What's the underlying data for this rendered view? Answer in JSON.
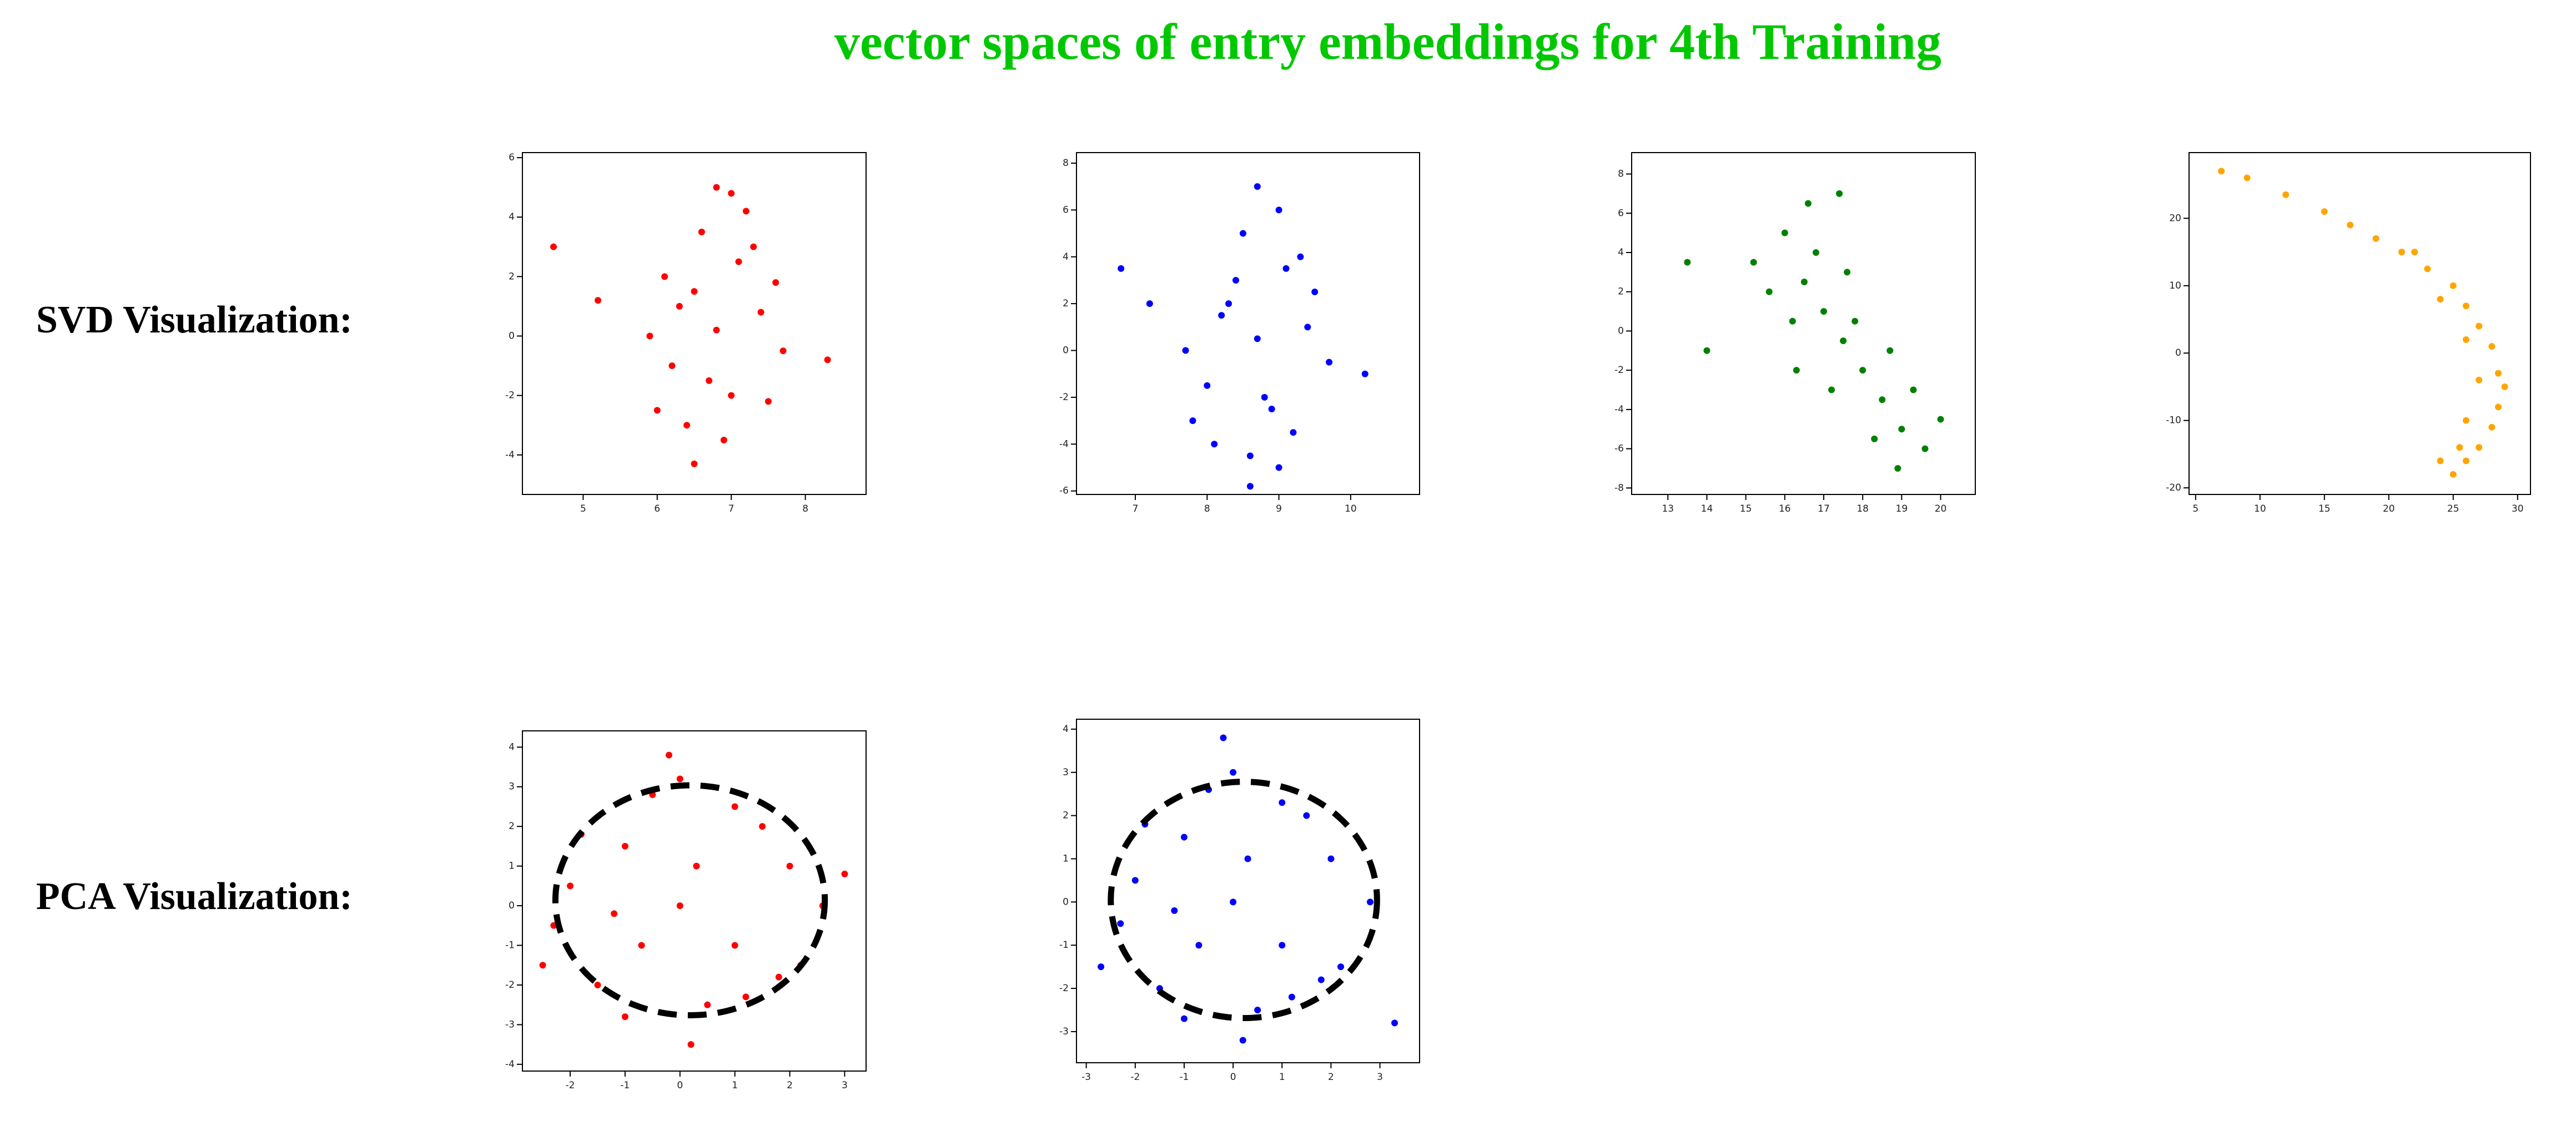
{
  "header": {
    "title": "vector spaces of entry embeddings for 4th Training"
  },
  "rows": [
    {
      "label": "SVD Visualization:"
    },
    {
      "label": "PCA Visualization:"
    }
  ],
  "chart_data": [
    {
      "type": "scatter",
      "xlim": [
        4.18,
        8.82
      ],
      "ylim": [
        -5.33,
        6.17
      ],
      "xticks": [
        5,
        6,
        7,
        8
      ],
      "yticks": [
        -4,
        -2,
        0,
        2,
        4,
        6
      ],
      "series": [
        {
          "color": "#ff0000",
          "x": [
            6.8,
            6.5,
            7.1,
            6.2,
            7.4,
            6.0,
            7.7,
            6.6,
            7.0,
            6.3,
            7.3,
            6.9,
            6.4,
            7.2,
            5.9,
            7.6,
            6.7,
            6.1,
            7.5,
            6.8,
            5.2,
            8.3,
            6.5,
            7.0,
            4.6
          ],
          "y": [
            0.2,
            1.5,
            2.5,
            -1.0,
            0.8,
            -2.5,
            -0.5,
            3.5,
            -2.0,
            1.0,
            3.0,
            -3.5,
            -3.0,
            4.2,
            0.0,
            1.8,
            -1.5,
            2.0,
            -2.2,
            5.0,
            1.2,
            -0.8,
            -4.3,
            4.8,
            3.0
          ]
        }
      ]
    },
    {
      "type": "scatter",
      "xlim": [
        6.18,
        10.96
      ],
      "ylim": [
        -6.15,
        8.45
      ],
      "xticks": [
        7,
        8,
        9,
        10
      ],
      "yticks": [
        -6,
        -4,
        -2,
        0,
        2,
        4,
        6,
        8
      ],
      "series": [
        {
          "color": "#0000ff",
          "x": [
            8.7,
            8.3,
            9.1,
            8.0,
            9.4,
            7.8,
            9.7,
            8.5,
            8.9,
            8.2,
            9.3,
            8.6,
            8.1,
            9.0,
            7.7,
            9.5,
            8.8,
            8.4,
            9.2,
            8.7,
            7.2,
            10.2,
            8.6,
            9.0,
            6.8
          ],
          "y": [
            0.5,
            2.0,
            3.5,
            -1.5,
            1.0,
            -3.0,
            -0.5,
            5.0,
            -2.5,
            1.5,
            4.0,
            -4.5,
            -4.0,
            6.0,
            0.0,
            2.5,
            -2.0,
            3.0,
            -3.5,
            7.0,
            2.0,
            -1.0,
            -5.8,
            -5.0,
            3.5
          ]
        }
      ]
    },
    {
      "type": "scatter",
      "xlim": [
        12.07,
        20.89
      ],
      "ylim": [
        -8.33,
        9.09
      ],
      "xticks": [
        13,
        14,
        15,
        16,
        17,
        18,
        19,
        20
      ],
      "yticks": [
        -8,
        -6,
        -4,
        -2,
        0,
        2,
        4,
        6,
        8
      ],
      "series": [
        {
          "color": "#008000",
          "x": [
            17.5,
            16.5,
            16.0,
            18.5,
            19.0,
            17.0,
            18.0,
            16.8,
            17.8,
            16.2,
            19.3,
            15.6,
            19.6,
            17.2,
            18.3,
            16.6,
            18.7,
            17.6,
            15.2,
            20.0,
            14.0,
            13.5,
            16.3,
            18.9,
            17.4
          ],
          "y": [
            -0.5,
            2.5,
            5.0,
            -3.5,
            -5.0,
            1.0,
            -2.0,
            4.0,
            0.5,
            0.5,
            -3.0,
            2.0,
            -6.0,
            -3.0,
            -5.5,
            6.5,
            -1.0,
            3.0,
            3.5,
            -4.5,
            -1.0,
            3.5,
            -2.0,
            -7.0,
            7.0
          ]
        }
      ]
    },
    {
      "type": "scatter",
      "xlim": [
        4.49,
        31.0
      ],
      "ylim": [
        -20.98,
        29.75
      ],
      "xticks": [
        5,
        10,
        15,
        20,
        25,
        30
      ],
      "yticks": [
        -20,
        -10,
        0,
        10,
        20
      ],
      "series": [
        {
          "color": "#ffa500",
          "x": [
            7,
            9,
            12,
            15,
            17,
            19,
            21,
            23,
            25,
            26,
            27,
            28,
            28.5,
            29,
            28.5,
            28,
            27,
            26,
            25,
            22,
            24,
            26,
            27,
            26,
            25.5,
            24
          ],
          "y": [
            27,
            26,
            23.5,
            21,
            19,
            17,
            15,
            12.5,
            10,
            7,
            4,
            1,
            -3,
            -5,
            -8,
            -11,
            -14,
            -16,
            -18,
            15,
            8,
            2,
            -4,
            -10,
            -14,
            -16
          ]
        }
      ]
    },
    {
      "type": "scatter",
      "xlim": [
        -2.87,
        3.39
      ],
      "ylim": [
        -4.17,
        4.41
      ],
      "xticks": [
        -2,
        -1,
        0,
        1,
        2,
        3
      ],
      "yticks": [
        -4,
        -3,
        -2,
        -1,
        0,
        1,
        2,
        3,
        4
      ],
      "series": [
        {
          "color": "#ff0000",
          "x": [
            0,
            -1,
            1,
            -2,
            2,
            -1.5,
            1.5,
            0.5,
            -0.5,
            -2.3,
            2.6,
            0,
            1,
            -1,
            0.3,
            -0.7,
            1.8,
            -1.8,
            2.2,
            -2.5,
            0.2,
            3,
            -0.2,
            1.2,
            -1.2
          ],
          "y": [
            0,
            1.5,
            -1,
            0.5,
            1,
            -2,
            2,
            -2.5,
            2.8,
            -0.5,
            0,
            3.2,
            2.5,
            -2.8,
            1,
            -1,
            -1.8,
            1.8,
            -1.5,
            -1.5,
            -3.5,
            0.8,
            3.8,
            -2.3,
            -0.2
          ]
        }
      ]
    },
    {
      "type": "scatter",
      "xlim": [
        -3.2,
        3.81
      ],
      "ylim": [
        -3.72,
        4.23
      ],
      "xticks": [
        -3,
        -2,
        -1,
        0,
        1,
        2,
        3
      ],
      "yticks": [
        -3,
        -2,
        -1,
        0,
        1,
        2,
        3,
        4
      ],
      "series": [
        {
          "color": "#0000ff",
          "x": [
            0,
            -1,
            1,
            -2,
            2,
            -1.5,
            1.5,
            0.5,
            -0.5,
            -2.3,
            2.8,
            0,
            1,
            -1,
            0.3,
            -0.7,
            1.8,
            -1.8,
            2.2,
            -2.7,
            0.2,
            3.3,
            -0.2,
            1.2,
            -1.2
          ],
          "y": [
            0,
            1.5,
            -1,
            0.5,
            1,
            -2,
            2,
            -2.5,
            2.6,
            -0.5,
            0,
            3,
            2.3,
            -2.7,
            1,
            -1,
            -1.8,
            1.8,
            -1.5,
            -1.5,
            -3.2,
            -2.8,
            3.8,
            -2.2,
            -0.2
          ]
        }
      ]
    }
  ]
}
